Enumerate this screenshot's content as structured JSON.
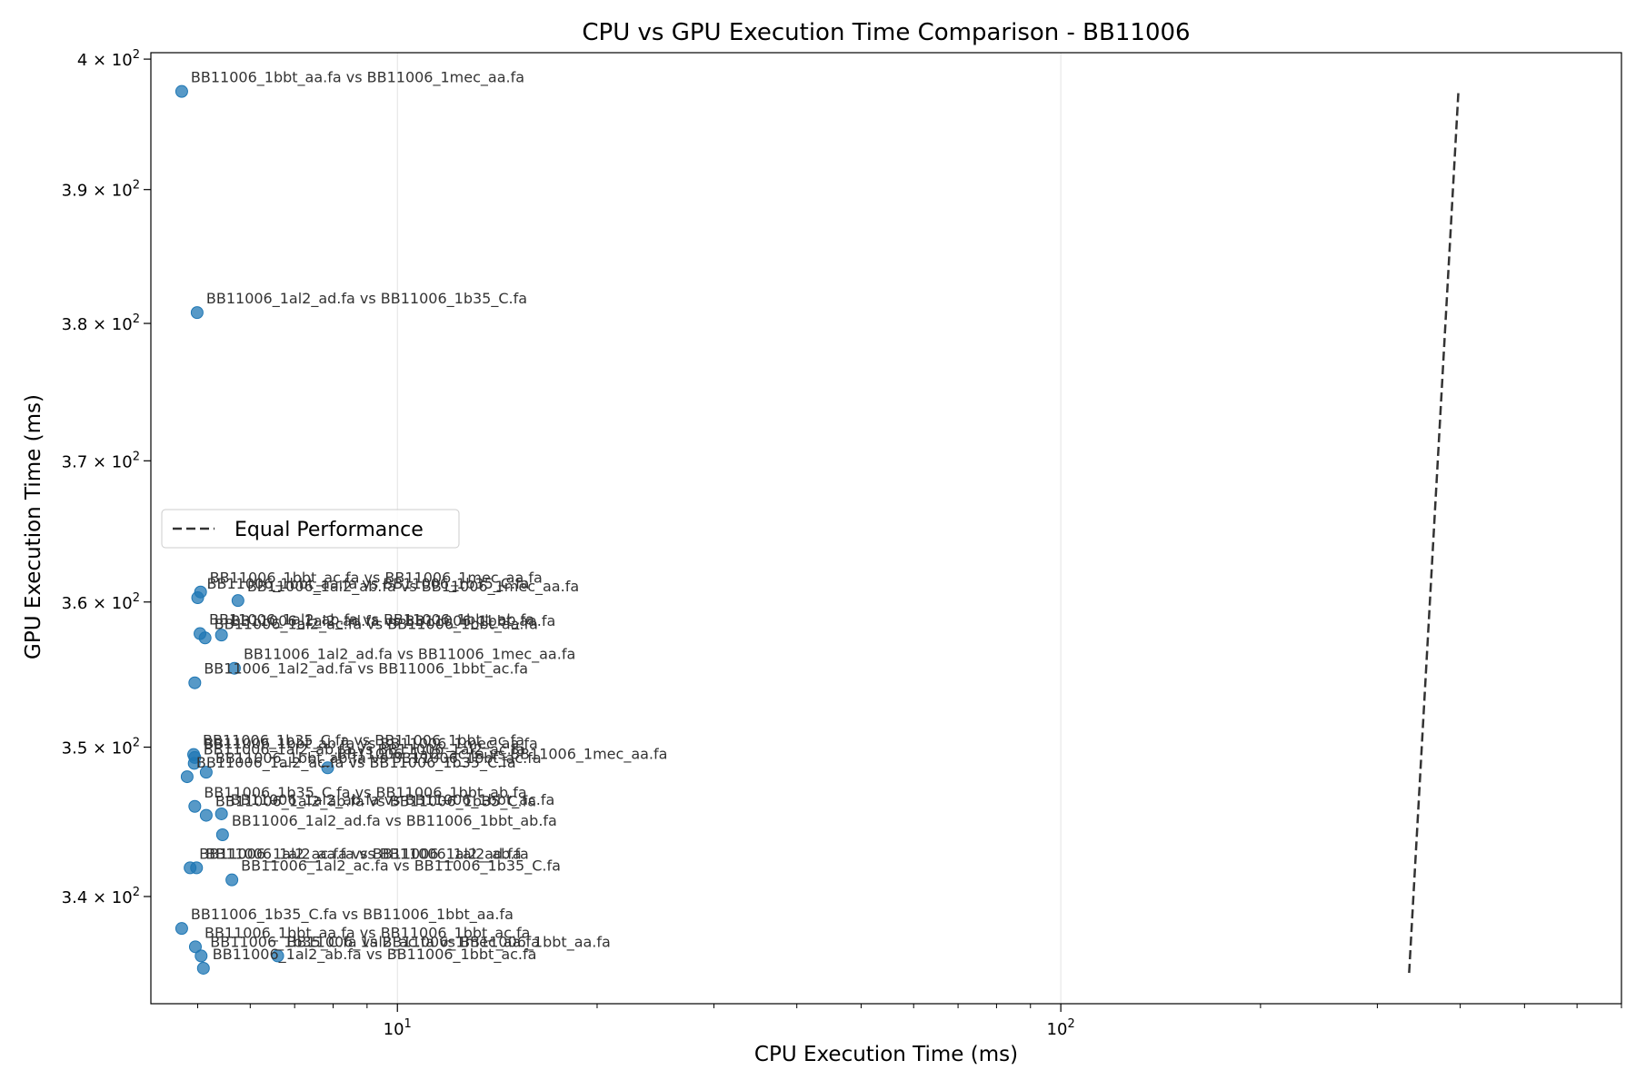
{
  "chart_data": {
    "type": "scatter",
    "title": "CPU vs GPU Execution Time Comparison - BB11006",
    "xlabel": "CPU Execution Time (ms)",
    "ylabel": "GPU Execution Time (ms)",
    "xscale": "log",
    "yscale": "log",
    "xlim": [
      4.25,
      700
    ],
    "ylim": [
      333,
      400.5
    ],
    "x_ticks": [
      {
        "value": 10,
        "label": "10^1"
      },
      {
        "value": 100,
        "label": "10^2"
      }
    ],
    "y_ticks": [
      {
        "value": 340,
        "label": "3.4 × 10^2"
      },
      {
        "value": 350,
        "label": "3.5 × 10^2"
      },
      {
        "value": 360,
        "label": "3.6 × 10^2"
      },
      {
        "value": 370,
        "label": "3.7 × 10^2"
      },
      {
        "value": 380,
        "label": "3.8 × 10^2"
      },
      {
        "value": 390,
        "label": "3.9 × 10^2"
      },
      {
        "value": 400,
        "label": "4 × 10^2"
      }
    ],
    "grid": "x-major",
    "legend": {
      "position": "center-left",
      "entries": [
        "Equal Performance"
      ]
    },
    "point_color": "#1f77b4",
    "line_color": "#333333",
    "equal_line": {
      "x": [
        335,
        397.5
      ],
      "y": [
        335,
        397.5
      ]
    },
    "points": [
      {
        "x": 4.73,
        "y": 397.5,
        "label": "BB11006_1bbt_aa.fa vs BB11006_1mec_aa.fa"
      },
      {
        "x": 4.99,
        "y": 380.8,
        "label": "BB11006_1al2_ad.fa vs BB11006_1b35_C.fa"
      },
      {
        "x": 5.05,
        "y": 360.7,
        "label": "BB11006_1bbt_ac.fa vs BB11006_1mec_aa.fa"
      },
      {
        "x": 5.0,
        "y": 360.3,
        "label": "BB11006_1bbt_aa.fa vs BB11006_1b35_C.fa"
      },
      {
        "x": 5.75,
        "y": 360.1,
        "label": "BB11006_1al2_ab.fa vs BB11006_1mec_aa.fa"
      },
      {
        "x": 5.04,
        "y": 357.8,
        "label": "BB11006_1al2_ab.fa vs BB11006_1bbt_ab.fa"
      },
      {
        "x": 5.13,
        "y": 357.5,
        "label": "BB11006_1al2_ac.fa vs BB11006_1bbt_aa.fa"
      },
      {
        "x": 5.43,
        "y": 357.7,
        "label": "BB11006_1al2_ad.fa vs BB11006_1bbt_aa.fa"
      },
      {
        "x": 5.68,
        "y": 355.4,
        "label": "BB11006_1al2_ad.fa vs BB11006_1mec_aa.fa"
      },
      {
        "x": 4.95,
        "y": 354.4,
        "label": "BB11006_1al2_ad.fa vs BB11006_1bbt_ac.fa"
      },
      {
        "x": 4.93,
        "y": 349.5,
        "label": "BB11006_1b35_C.fa vs BB11006_1bbt_ac.fa"
      },
      {
        "x": 4.95,
        "y": 349.3,
        "label": "BB11006_1bbt_ab.fa vs BB11006_1mec_aa.fa"
      },
      {
        "x": 4.94,
        "y": 348.9,
        "label": "BB11006_1al2_ab.fa vs BB11006_1al2_ac.fa"
      },
      {
        "x": 4.82,
        "y": 348.0,
        "label": "BB11006_1al2_ac.fa vs BB11006_1b35_C.fa"
      },
      {
        "x": 5.15,
        "y": 348.3,
        "label": "BB11006_1bbt_ab.fa vs BB11006_1bbt_ac.fa"
      },
      {
        "x": 7.85,
        "y": 348.6,
        "label": "BB11006_1al2_ac.fa vs BB11006_1mec_aa.fa"
      },
      {
        "x": 4.95,
        "y": 346.0,
        "label": "BB11006_1b35_C.fa vs BB11006_1bbt_ab.fa"
      },
      {
        "x": 5.15,
        "y": 345.4,
        "label": "BB11006_1al2_ab.fa vs BB11006_1b35_C.fa"
      },
      {
        "x": 5.43,
        "y": 345.5,
        "label": "BB11006_1al2_ab.fa vs BB11006_1bbt_ac.fa"
      },
      {
        "x": 5.45,
        "y": 344.1,
        "label": "BB11006_1al2_ad.fa vs BB11006_1bbt_ab.fa"
      },
      {
        "x": 4.87,
        "y": 341.9,
        "label": "BB11006_1al2_ac.fa vs BB11006_1al2_ad.fa"
      },
      {
        "x": 4.98,
        "y": 341.9,
        "label": "BB11006_1al2_aa.fa vs BB11006_1al2_ab.fa"
      },
      {
        "x": 5.63,
        "y": 341.1,
        "label": "BB11006_1al2_ac.fa vs BB11006_1b35_C.fa"
      },
      {
        "x": 4.73,
        "y": 337.9,
        "label": "BB11006_1b35_C.fa vs BB11006_1bbt_aa.fa"
      },
      {
        "x": 4.96,
        "y": 336.7,
        "label": "BB11006_1bbt_aa.fa vs BB11006_1bbt_ac.fa"
      },
      {
        "x": 5.06,
        "y": 336.1,
        "label": "BB11006_1b35_C.fa vs BB11006_1mec_aa.fa"
      },
      {
        "x": 6.6,
        "y": 336.1,
        "label": "BB11006_1al2_ac.fa vs BB11006_1bbt_aa.fa"
      },
      {
        "x": 5.1,
        "y": 335.3,
        "label": "BB11006_1al2_ab.fa vs BB11006_1bbt_ac.fa"
      }
    ]
  }
}
